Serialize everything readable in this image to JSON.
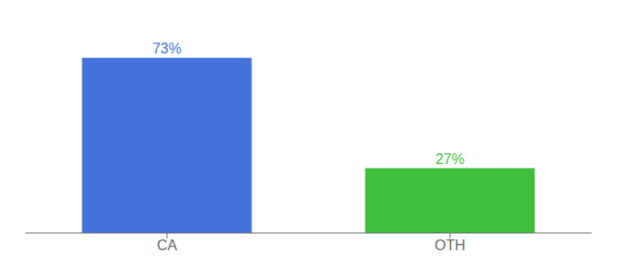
{
  "chart_data": {
    "type": "bar",
    "categories": [
      "CA",
      "OTH"
    ],
    "values": [
      73,
      27
    ],
    "value_labels": [
      "73%",
      "27%"
    ],
    "colors": [
      "#4472db",
      "#3dbf3d"
    ],
    "ylim": [
      0,
      85
    ],
    "data_labels": true,
    "tick_labels": "x",
    "grid": false
  }
}
